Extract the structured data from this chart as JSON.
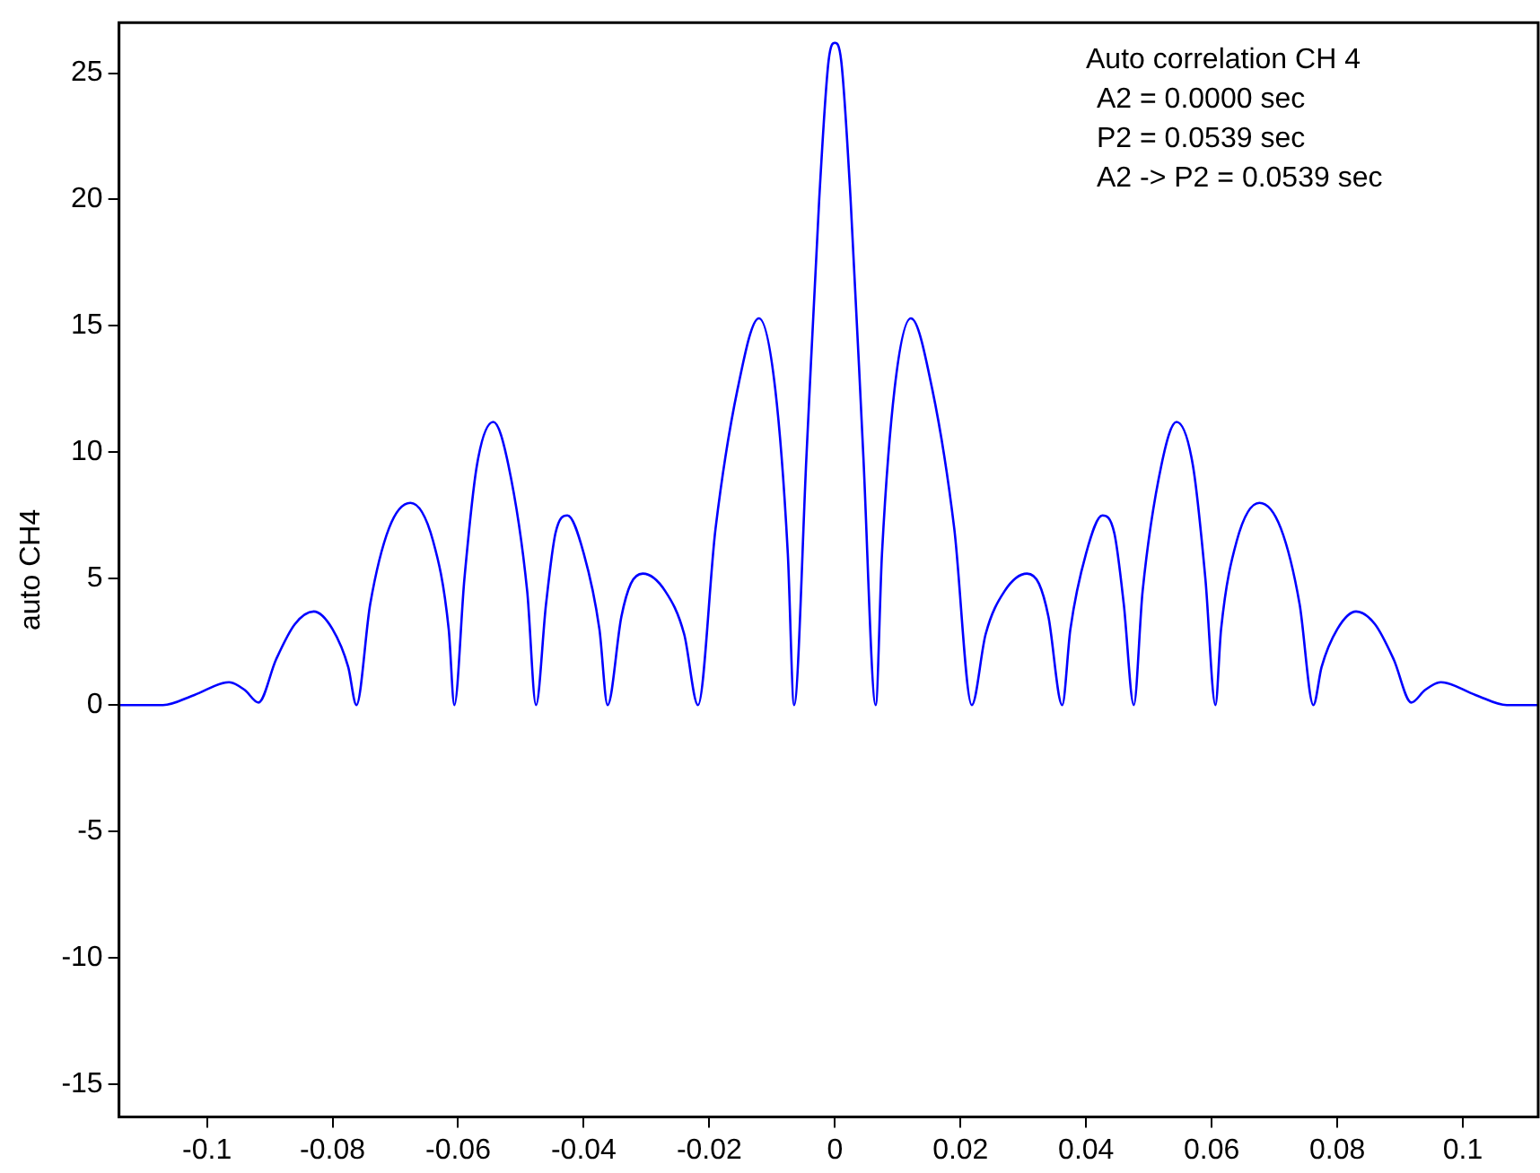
{
  "chart_data": {
    "type": "line",
    "ylabel": "auto CH4",
    "annotations": [
      "Auto correlation CH 4",
      "A2 = 0.0000 sec",
      "P2 = 0.0539 sec",
      "A2 -> P2 = 0.0539 sec"
    ],
    "xlim": [
      -0.114,
      0.112
    ],
    "ylim": [
      -16.3,
      27
    ],
    "xticks": [
      -0.1,
      -0.08,
      -0.06,
      -0.04,
      -0.02,
      0,
      0.02,
      0.04,
      0.06,
      0.08,
      0.1
    ],
    "yticks": [
      -15,
      -10,
      -5,
      0,
      5,
      10,
      15,
      20,
      25
    ],
    "grid": false,
    "legend": false,
    "marker": "none",
    "line_style": "solid",
    "series": [
      {
        "color": "#0000ff",
        "x": [
          -0.114,
          -0.107,
          -0.102,
          -0.0965,
          -0.094,
          -0.0918,
          -0.089,
          -0.086,
          -0.083,
          -0.08,
          -0.0775,
          -0.0762,
          -0.074,
          -0.071,
          -0.0676,
          -0.064,
          -0.0615,
          -0.0606,
          -0.059,
          -0.057,
          -0.0544,
          -0.052,
          -0.049,
          -0.0476,
          -0.046,
          -0.0445,
          -0.0426,
          -0.04,
          -0.0375,
          -0.0362,
          -0.034,
          -0.0325,
          -0.0306,
          -0.027,
          -0.024,
          -0.0218,
          -0.019,
          -0.0155,
          -0.0121,
          -0.0095,
          -0.0075,
          -0.0065,
          -0.0045,
          -0.0025,
          -0.001,
          0,
          0.001,
          0.0025,
          0.0045,
          0.0065,
          0.0075,
          0.0095,
          0.0121,
          0.0155,
          0.019,
          0.0218,
          0.024,
          0.027,
          0.0306,
          0.0325,
          0.034,
          0.0362,
          0.0375,
          0.04,
          0.0426,
          0.0445,
          0.046,
          0.0476,
          0.049,
          0.052,
          0.0544,
          0.057,
          0.059,
          0.0606,
          0.0615,
          0.064,
          0.0676,
          0.071,
          0.074,
          0.0762,
          0.0775,
          0.08,
          0.083,
          0.086,
          0.089,
          0.0918,
          0.094,
          0.0965,
          0.102,
          0.107,
          0.112
        ],
        "values": [
          0,
          0,
          0.4,
          0.9,
          0.6,
          0.1,
          1.8,
          3.2,
          3.7,
          3.0,
          1.5,
          0,
          4.0,
          7.0,
          8.0,
          6.5,
          3.0,
          0,
          5.0,
          9.5,
          11.2,
          9.5,
          4.5,
          0,
          4.0,
          6.8,
          7.5,
          6.0,
          3.0,
          0,
          3.5,
          4.8,
          5.2,
          4.5,
          2.8,
          0,
          7.0,
          12.5,
          15.3,
          12.5,
          6.0,
          0,
          10,
          20,
          25.5,
          26.2,
          25.5,
          20,
          10,
          0,
          6.0,
          12.5,
          15.3,
          12.5,
          7.0,
          0,
          2.8,
          4.5,
          5.2,
          4.8,
          3.5,
          0,
          3.0,
          6.0,
          7.5,
          6.8,
          4.0,
          0,
          4.5,
          9.5,
          11.2,
          9.5,
          5.0,
          0,
          3.0,
          6.5,
          8.0,
          7.0,
          4.0,
          0,
          1.5,
          3.0,
          3.7,
          3.2,
          1.8,
          0.1,
          0.6,
          0.9,
          0.4,
          0,
          0
        ]
      }
    ]
  }
}
